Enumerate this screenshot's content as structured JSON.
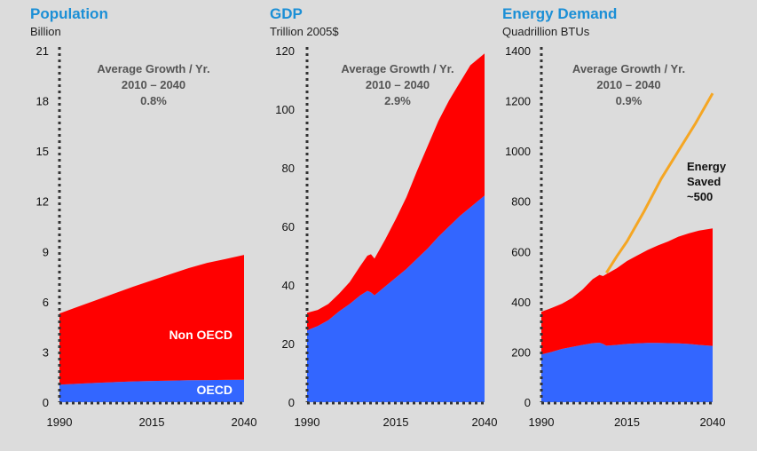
{
  "colors": {
    "background": "#dcdcdc",
    "title": "#1b8fd6",
    "oecd": "#3366ff",
    "non_oecd": "#ff0000",
    "energy_saved": "#f5a623",
    "axis": "#333333"
  },
  "chart_data": [
    {
      "type": "area",
      "title": "Population",
      "subtitle": "Billion",
      "annotation": [
        "Average Growth / Yr.",
        "2010 – 2040",
        "0.8%"
      ],
      "x_ticks": [
        "1990",
        "2015",
        "2040"
      ],
      "y_ticks": [
        "0",
        "3",
        "6",
        "9",
        "12",
        "15",
        "18",
        "21"
      ],
      "xlim": [
        1990,
        2040
      ],
      "ylim": [
        0,
        21
      ],
      "x": [
        1990,
        1995,
        2000,
        2005,
        2010,
        2015,
        2020,
        2025,
        2030,
        2035,
        2040
      ],
      "series": [
        {
          "name": "OECD",
          "label": "OECD",
          "color_key": "oecd",
          "values": [
            1.05,
            1.1,
            1.15,
            1.2,
            1.24,
            1.27,
            1.29,
            1.31,
            1.32,
            1.33,
            1.34
          ]
        },
        {
          "name": "Non OECD",
          "label": "Non OECD",
          "color_key": "non_oecd",
          "values": [
            4.25,
            4.6,
            4.95,
            5.3,
            5.66,
            6.0,
            6.35,
            6.7,
            7.0,
            7.22,
            7.46
          ]
        }
      ],
      "stacked": true
    },
    {
      "type": "area",
      "title": "GDP",
      "subtitle": "Trillion 2005$",
      "annotation": [
        "Average Growth / Yr.",
        "2010 – 2040",
        "2.9%"
      ],
      "x_ticks": [
        "1990",
        "2015",
        "2040"
      ],
      "y_ticks": [
        "0",
        "20",
        "40",
        "60",
        "80",
        "100",
        "120"
      ],
      "xlim": [
        1990,
        2040
      ],
      "ylim": [
        0,
        120
      ],
      "x": [
        1990,
        1993,
        1996,
        1999,
        2002,
        2005,
        2007,
        2008,
        2009,
        2012,
        2015,
        2018,
        2021,
        2024,
        2027,
        2030,
        2033,
        2036,
        2040
      ],
      "series": [
        {
          "name": "OECD",
          "color_key": "oecd",
          "values": [
            24.5,
            26,
            28,
            31,
            33.5,
            36.5,
            38,
            37.5,
            36.5,
            39.5,
            42.5,
            45.5,
            49,
            52.5,
            56.5,
            60,
            63.5,
            66.5,
            70.5
          ]
        },
        {
          "name": "Non OECD",
          "color_key": "non_oecd",
          "values": [
            6,
            5.5,
            5.5,
            6,
            7.5,
            10,
            12,
            13,
            12.5,
            16,
            20,
            24.5,
            30,
            35,
            39.5,
            43,
            45.5,
            48.5,
            48.5
          ]
        }
      ],
      "stacked": true
    },
    {
      "type": "area",
      "title": "Energy Demand",
      "subtitle": "Quadrillion BTUs",
      "annotation": [
        "Average Growth / Yr.",
        "2010 – 2040",
        "0.9%"
      ],
      "x_ticks": [
        "1990",
        "2015",
        "2040"
      ],
      "y_ticks": [
        "0",
        "200",
        "400",
        "600",
        "800",
        "1000",
        "1200",
        "1400"
      ],
      "xlim": [
        1990,
        2040
      ],
      "ylim": [
        0,
        1400
      ],
      "x": [
        1990,
        1993,
        1996,
        1999,
        2002,
        2005,
        2007,
        2008,
        2009,
        2012,
        2015,
        2018,
        2021,
        2024,
        2027,
        2030,
        2033,
        2036,
        2040
      ],
      "series": [
        {
          "name": "OECD",
          "color_key": "oecd",
          "values": [
            190,
            200,
            212,
            220,
            228,
            235,
            237,
            232,
            225,
            228,
            232,
            234,
            236,
            236,
            235,
            234,
            232,
            228,
            224
          ]
        },
        {
          "name": "Non OECD",
          "color_key": "non_oecd",
          "values": [
            170,
            175,
            180,
            195,
            220,
            255,
            270,
            270,
            285,
            305,
            330,
            350,
            370,
            388,
            405,
            425,
            440,
            455,
            468
          ]
        }
      ],
      "stacked": true,
      "extra_line": {
        "name": "Energy Saved",
        "color_key": "energy_saved",
        "x": [
          2009,
          2012,
          2015,
          2020,
          2025,
          2030,
          2035,
          2040
        ],
        "values": [
          515,
          580,
          640,
          760,
          890,
          1000,
          1110,
          1230
        ]
      },
      "callout": [
        "Energy",
        "Saved",
        "~500"
      ]
    }
  ]
}
